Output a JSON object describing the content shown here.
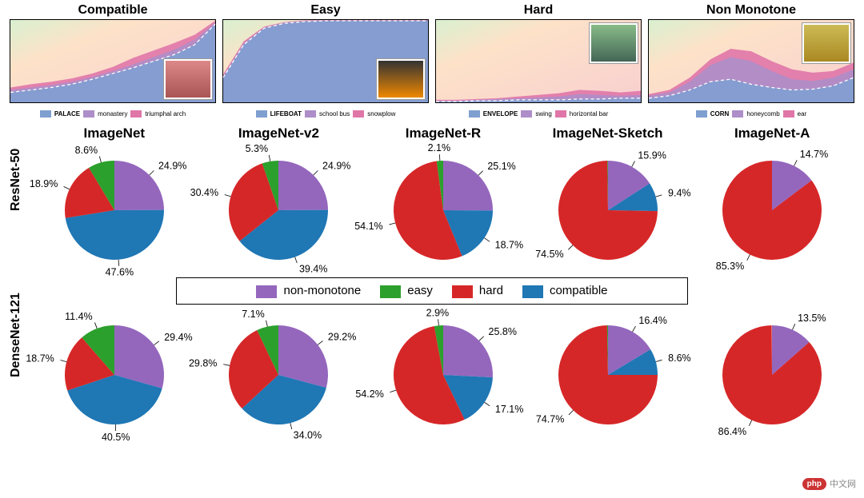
{
  "colors": {
    "non_monotone": "#9467bd",
    "easy": "#2ca02c",
    "hard": "#d62728",
    "compatible": "#1f77b4",
    "area_bg_top": "#fde2c8",
    "area_bg_bottom": "#f8cfd0",
    "area_top_series": "#e076a8",
    "area_mid_series": "#ad8ec9",
    "area_main_series": "#7f9fd0",
    "area_border": "#000000",
    "bg": "#ffffff",
    "font": "#000000"
  },
  "typography": {
    "font_family": "Comic Sans MS",
    "title_size_pt": 16,
    "pie_label_size_pt": 12.5,
    "legend_size_pt": 15,
    "area_legend_size_pt": 8
  },
  "area_row": [
    {
      "title": "Compatible",
      "thumb_pos": "bottom-right",
      "thumb_bg": "linear-gradient(#d88,#a55)",
      "legend": [
        {
          "label": "PALACE",
          "bold": true,
          "color": "#7f9fd0"
        },
        {
          "label": "monastery",
          "bold": false,
          "color": "#ad8ec9"
        },
        {
          "label": "triumphal arch",
          "bold": false,
          "color": "#e076a8"
        }
      ],
      "series": {
        "type": "stacked-area",
        "x_range": [
          0,
          100
        ],
        "y_range": [
          0,
          1
        ],
        "main": [
          0.12,
          0.15,
          0.18,
          0.22,
          0.28,
          0.35,
          0.42,
          0.5,
          0.58,
          0.7,
          0.95
        ],
        "mid": [
          0.15,
          0.18,
          0.21,
          0.25,
          0.31,
          0.38,
          0.46,
          0.55,
          0.64,
          0.76,
          0.97
        ],
        "top": [
          0.18,
          0.22,
          0.25,
          0.29,
          0.35,
          0.43,
          0.54,
          0.63,
          0.72,
          0.82,
          0.99
        ]
      }
    },
    {
      "title": "Easy",
      "thumb_pos": "bottom-right",
      "thumb_bg": "linear-gradient(#333,#e80)",
      "legend": [
        {
          "label": "LIFEBOAT",
          "bold": true,
          "color": "#7f9fd0"
        },
        {
          "label": "school bus",
          "bold": false,
          "color": "#ad8ec9"
        },
        {
          "label": "snowplow",
          "bold": false,
          "color": "#e076a8"
        }
      ],
      "series": {
        "type": "stacked-area",
        "x_range": [
          0,
          100
        ],
        "y_range": [
          0,
          1
        ],
        "main": [
          0.3,
          0.7,
          0.9,
          0.96,
          0.98,
          0.99,
          0.99,
          0.99,
          0.99,
          0.99,
          0.99
        ],
        "mid": [
          0.32,
          0.72,
          0.91,
          0.97,
          0.99,
          0.995,
          0.995,
          0.995,
          0.995,
          0.995,
          0.995
        ],
        "top": [
          0.34,
          0.74,
          0.92,
          0.975,
          0.995,
          1.0,
          1.0,
          1.0,
          1.0,
          1.0,
          1.0
        ]
      }
    },
    {
      "title": "Hard",
      "thumb_pos": "top-right",
      "thumb_bg": "linear-gradient(#8b8,#465)",
      "legend": [
        {
          "label": "ENVELOPE",
          "bold": true,
          "color": "#7f9fd0"
        },
        {
          "label": "swing",
          "bold": false,
          "color": "#ad8ec9"
        },
        {
          "label": "horizontal bar",
          "bold": false,
          "color": "#e076a8"
        }
      ],
      "series": {
        "type": "stacked-area",
        "x_range": [
          0,
          100
        ],
        "y_range": [
          0,
          1
        ],
        "main": [
          0.01,
          0.01,
          0.02,
          0.02,
          0.03,
          0.03,
          0.03,
          0.04,
          0.04,
          0.05,
          0.05
        ],
        "mid": [
          0.02,
          0.02,
          0.03,
          0.04,
          0.05,
          0.06,
          0.07,
          0.1,
          0.09,
          0.08,
          0.09
        ],
        "top": [
          0.03,
          0.03,
          0.04,
          0.05,
          0.07,
          0.09,
          0.11,
          0.15,
          0.14,
          0.12,
          0.14
        ]
      }
    },
    {
      "title": "Non Monotone",
      "thumb_pos": "top-right",
      "thumb_bg": "linear-gradient(#cb5,#a82)",
      "legend": [
        {
          "label": "CORN",
          "bold": true,
          "color": "#7f9fd0"
        },
        {
          "label": "honeycomb",
          "bold": false,
          "color": "#ad8ec9"
        },
        {
          "label": "ear",
          "bold": false,
          "color": "#e076a8"
        }
      ],
      "series": {
        "type": "stacked-area",
        "x_range": [
          0,
          100
        ],
        "y_range": [
          0,
          1
        ],
        "main": [
          0.05,
          0.08,
          0.15,
          0.25,
          0.28,
          0.22,
          0.18,
          0.15,
          0.16,
          0.2,
          0.3
        ],
        "mid": [
          0.08,
          0.12,
          0.25,
          0.45,
          0.55,
          0.5,
          0.38,
          0.28,
          0.26,
          0.3,
          0.4
        ],
        "top": [
          0.1,
          0.15,
          0.3,
          0.52,
          0.65,
          0.62,
          0.5,
          0.4,
          0.36,
          0.38,
          0.48
        ]
      }
    }
  ],
  "pie_col_titles": [
    "ImageNet",
    "ImageNet-v2",
    "ImageNet-R",
    "ImageNet-Sketch",
    "ImageNet-A"
  ],
  "pie_rows": [
    {
      "label": "ResNet-50",
      "pies": [
        {
          "non_monotone": 24.9,
          "easy": 8.6,
          "hard": 18.9,
          "compatible": 47.6
        },
        {
          "non_monotone": 24.9,
          "easy": 5.3,
          "hard": 30.4,
          "compatible": 39.4
        },
        {
          "non_monotone": 25.1,
          "easy": 2.1,
          "hard": 54.1,
          "compatible": 18.7
        },
        {
          "non_monotone": 15.9,
          "easy": 0.2,
          "hard": 74.5,
          "compatible": 9.4
        },
        {
          "non_monotone": 14.7,
          "easy": 0.0,
          "hard": 85.3,
          "compatible": 0.0
        }
      ]
    },
    {
      "label": "DenseNet-121",
      "pies": [
        {
          "non_monotone": 29.4,
          "easy": 11.4,
          "hard": 18.7,
          "compatible": 40.5
        },
        {
          "non_monotone": 29.2,
          "easy": 7.1,
          "hard": 29.8,
          "compatible": 34.0
        },
        {
          "non_monotone": 25.8,
          "easy": 2.9,
          "hard": 54.2,
          "compatible": 17.1
        },
        {
          "non_monotone": 16.4,
          "easy": 0.3,
          "hard": 74.7,
          "compatible": 8.6
        },
        {
          "non_monotone": 13.5,
          "easy": 0.1,
          "hard": 86.4,
          "compatible": 0.0
        }
      ]
    }
  ],
  "mid_legend": [
    {
      "key": "non_monotone",
      "label": "non-monotone"
    },
    {
      "key": "easy",
      "label": "easy"
    },
    {
      "key": "hard",
      "label": "hard"
    },
    {
      "key": "compatible",
      "label": "compatible"
    }
  ],
  "watermark": {
    "badge": "php",
    "text": "中文网"
  }
}
